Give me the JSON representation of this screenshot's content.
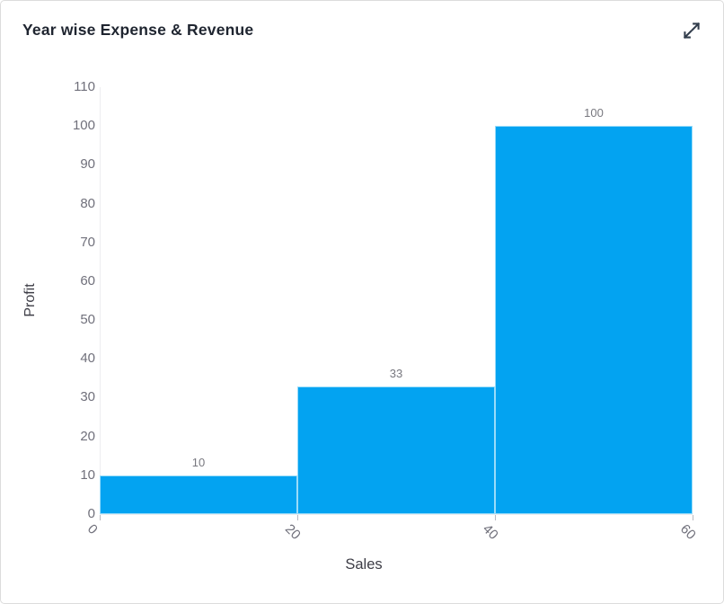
{
  "card": {
    "title": "Year wise Expense & Revenue"
  },
  "icons": {
    "expand": "expand-arrows-icon",
    "expand_color": "#323d4c"
  },
  "chart_data": {
    "type": "bar",
    "title": "Year wise Expense & Revenue",
    "xlabel": "Sales",
    "ylabel": "Profit",
    "xlim": [
      0,
      60
    ],
    "ylim": [
      0,
      110
    ],
    "x_ticks": [
      0,
      20,
      40,
      60
    ],
    "y_ticks": [
      0,
      10,
      20,
      30,
      40,
      50,
      60,
      70,
      80,
      90,
      100,
      110
    ],
    "bars": [
      {
        "x0": 0,
        "x1": 20,
        "value": 10,
        "label": "10"
      },
      {
        "x0": 20,
        "x1": 40,
        "value": 33,
        "label": "33"
      },
      {
        "x0": 40,
        "x1": 60,
        "value": 100,
        "label": "100"
      }
    ],
    "bar_color": "#03a3f1",
    "bar_border_color": "#9adcf9",
    "value_label_color": "#78787f",
    "tick_label_color": "#70707b",
    "grid": false,
    "legend": "none"
  }
}
